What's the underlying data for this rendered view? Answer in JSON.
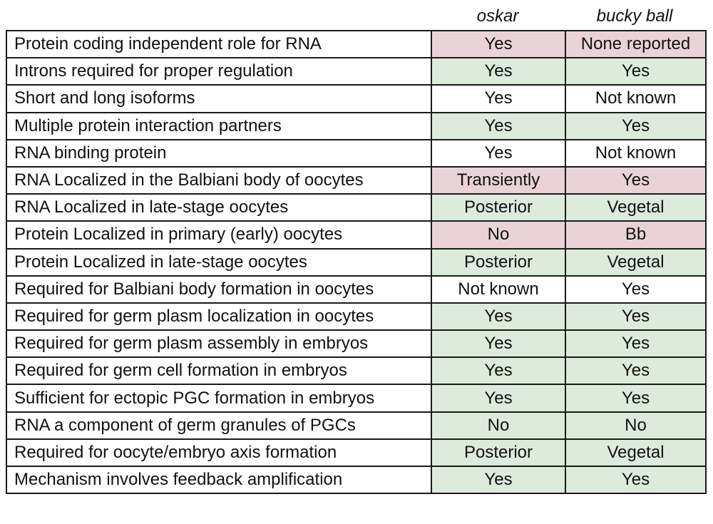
{
  "colors": {
    "pink": "#ead3d8",
    "green": "#dcebdb",
    "white": "#ffffff"
  },
  "headers": {
    "col1": "oskar",
    "col2": "bucky ball"
  },
  "rows": [
    {
      "label": "Protein coding independent role for RNA",
      "oskar": "Yes",
      "bucky": "None reported",
      "fill": "pink"
    },
    {
      "label": "Introns required for proper regulation",
      "oskar": "Yes",
      "bucky": "Yes",
      "fill": "green"
    },
    {
      "label": "Short and long isoforms",
      "oskar": "Yes",
      "bucky": "Not known",
      "fill": "white"
    },
    {
      "label": "Multiple protein interaction partners",
      "oskar": "Yes",
      "bucky": "Yes",
      "fill": "green"
    },
    {
      "label": "RNA binding protein",
      "oskar": "Yes",
      "bucky": "Not known",
      "fill": "white"
    },
    {
      "label": "RNA Localized in the Balbiani body of oocytes",
      "oskar": "Transiently",
      "bucky": "Yes",
      "fill": "pink"
    },
    {
      "label": "RNA Localized in late-stage oocytes",
      "oskar": "Posterior",
      "bucky": "Vegetal",
      "fill": "green"
    },
    {
      "label": "Protein Localized in primary (early) oocytes",
      "oskar": "No",
      "bucky": "Bb",
      "fill": "pink"
    },
    {
      "label": "Protein Localized in late-stage oocytes",
      "oskar": "Posterior",
      "bucky": "Vegetal",
      "fill": "green"
    },
    {
      "label": "Required for Balbiani body formation in oocytes",
      "oskar": "Not known",
      "bucky": "Yes",
      "fill": "white"
    },
    {
      "label": "Required for germ plasm localization in oocytes",
      "oskar": "Yes",
      "bucky": "Yes",
      "fill": "green"
    },
    {
      "label": "Required for germ plasm assembly in embryos",
      "oskar": "Yes",
      "bucky": "Yes",
      "fill": "green"
    },
    {
      "label": "Required for germ cell formation in embryos",
      "oskar": "Yes",
      "bucky": "Yes",
      "fill": "green"
    },
    {
      "label": "Sufficient for ectopic PGC formation in embryos",
      "oskar": "Yes",
      "bucky": "Yes",
      "fill": "green"
    },
    {
      "label": "RNA a component of germ granules of PGCs",
      "oskar": "No",
      "bucky": "No",
      "fill": "green"
    },
    {
      "label": "Required for oocyte/embryo axis formation",
      "oskar": "Posterior",
      "bucky": "Vegetal",
      "fill": "green"
    },
    {
      "label": "Mechanism involves feedback amplification",
      "oskar": "Yes",
      "bucky": "Yes",
      "fill": "green"
    }
  ]
}
